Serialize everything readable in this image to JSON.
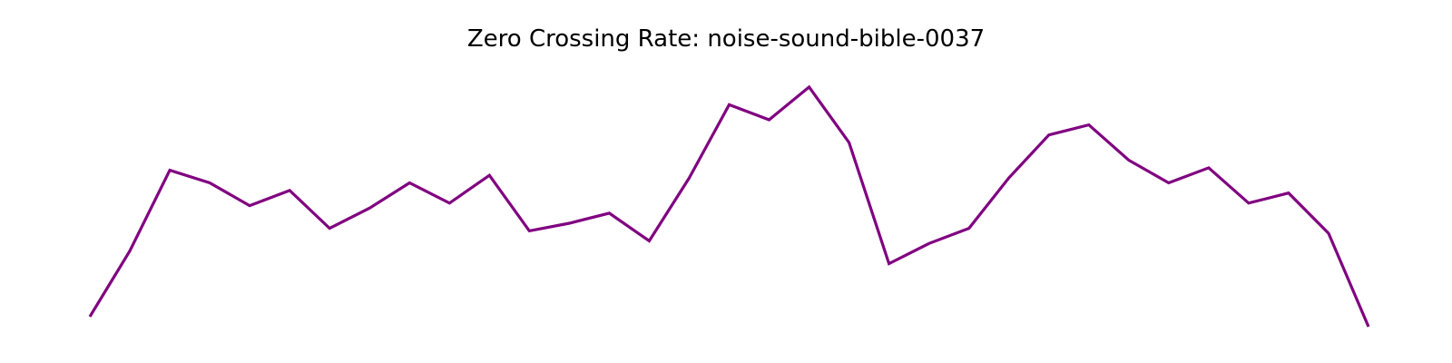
{
  "chart_data": {
    "type": "line",
    "title": "Zero Crossing Rate: noise-sound-bible-0037",
    "xlabel": "",
    "ylabel": "",
    "axes_visible": false,
    "grid": false,
    "x": [
      0,
      1,
      2,
      3,
      4,
      5,
      6,
      7,
      8,
      9,
      10,
      11,
      12,
      13,
      14,
      15,
      16,
      17,
      18,
      19,
      20,
      21,
      22,
      23,
      24,
      25,
      26,
      27,
      28,
      29,
      30,
      31,
      32
    ],
    "ylim": [
      0,
      1
    ],
    "series": [
      {
        "name": "zcr",
        "color": "#800080",
        "values": [
          0.04,
          0.3,
          0.62,
          0.57,
          0.48,
          0.54,
          0.39,
          0.47,
          0.57,
          0.49,
          0.6,
          0.38,
          0.41,
          0.45,
          0.34,
          0.59,
          0.88,
          0.82,
          0.95,
          0.73,
          0.25,
          0.33,
          0.39,
          0.59,
          0.76,
          0.8,
          0.66,
          0.57,
          0.63,
          0.49,
          0.53,
          0.37,
          0.0
        ]
      }
    ]
  }
}
